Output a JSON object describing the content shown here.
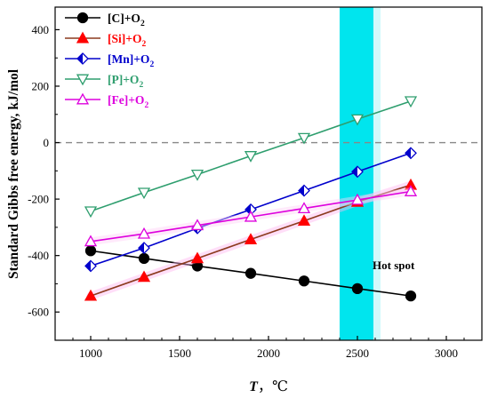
{
  "chart_data": {
    "type": "line",
    "xlabel_symbol": "T",
    "xlabel_unit": "，℃",
    "ylabel": "Standard Gibbs free energy, kJ/mol",
    "xlim": [
      800,
      3200
    ],
    "ylim": [
      -700,
      480
    ],
    "xticks": [
      1000,
      1500,
      2000,
      2500,
      3000
    ],
    "yticks": [
      400,
      200,
      0,
      -200,
      -400,
      -600
    ],
    "x": [
      1000,
      1300,
      1600,
      1900,
      2200,
      2500,
      2800
    ],
    "reference_line_y": 0,
    "hot_spot": {
      "label": "Hot spot",
      "x_range": [
        2400,
        2590
      ],
      "color": "#00e5ee"
    },
    "series": [
      {
        "name": "[C]+O₂",
        "base": "[C]+O",
        "sub": "2",
        "color": "#000000",
        "marker": "circle",
        "values": [
          -383,
          -410,
          -437,
          -463,
          -490,
          -517,
          -543
        ]
      },
      {
        "name": "[Si]+O₂",
        "base": "[Si]+O",
        "sub": "2",
        "color": "#ff0000",
        "line_color": "#8b3a1e",
        "marker": "triangle",
        "values": [
          -543,
          -476,
          -410,
          -343,
          -277,
          -210,
          -150
        ]
      },
      {
        "name": "[Mn]+O₂",
        "base": "[Mn]+O",
        "sub": "2",
        "color": "#0000cc",
        "marker": "half-diamond",
        "values": [
          -437,
          -373,
          -303,
          -237,
          -170,
          -103,
          -37
        ]
      },
      {
        "name": "[P]+O₂",
        "base": "[P]+O",
        "sub": "2",
        "color": "#2e9e6e",
        "marker": "triangle-down",
        "values": [
          -243,
          -177,
          -113,
          -47,
          17,
          83,
          147
        ]
      },
      {
        "name": "[Fe]+O₂",
        "base": "[Fe]+O",
        "sub": "2",
        "color": "#dd00dd",
        "marker": "triangle-open",
        "values": [
          -350,
          -323,
          -293,
          -263,
          -233,
          -203,
          -173
        ]
      }
    ]
  }
}
